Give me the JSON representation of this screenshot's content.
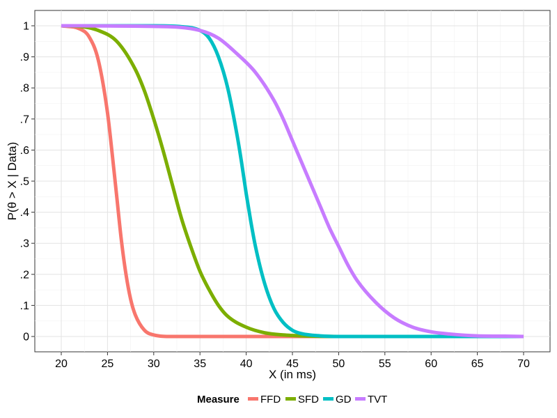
{
  "chart_data": {
    "type": "line",
    "xlabel": "X (in ms)",
    "ylabel": "P(θ > X | Data)",
    "xlim": [
      20,
      70
    ],
    "ylim": [
      0,
      1
    ],
    "x_ticks": [
      20,
      25,
      30,
      35,
      40,
      45,
      50,
      55,
      60,
      65,
      70
    ],
    "x_tick_labels": [
      "20",
      "25",
      "30",
      "35",
      "40",
      "45",
      "50",
      "55",
      "60",
      "65",
      "70"
    ],
    "y_ticks": [
      0,
      0.1,
      0.2,
      0.3,
      0.4,
      0.5,
      0.6,
      0.7,
      0.8,
      0.9,
      1
    ],
    "y_tick_labels": [
      "0",
      ".1",
      ".2",
      ".3",
      ".4",
      ".5",
      ".6",
      ".7",
      ".8",
      ".9",
      "1"
    ],
    "grid": true,
    "legend": {
      "title": "Measure",
      "position": "bottom"
    },
    "series": [
      {
        "name": "FFD",
        "color": "#F8766D",
        "x": [
          20,
          22,
          23,
          24,
          25,
          25.5,
          26,
          26.5,
          27,
          27.5,
          28,
          29,
          30,
          32,
          35,
          40,
          50,
          60,
          70
        ],
        "y": [
          1.0,
          0.99,
          0.965,
          0.89,
          0.72,
          0.59,
          0.45,
          0.31,
          0.2,
          0.12,
          0.07,
          0.02,
          0.005,
          0.0,
          0.0,
          0.0,
          0.0,
          0.0,
          0.0
        ]
      },
      {
        "name": "SFD",
        "color": "#7CAE00",
        "x": [
          20,
          22,
          24,
          26,
          28,
          29,
          30,
          31,
          32,
          33,
          34,
          35,
          36,
          37,
          38,
          40,
          42,
          44,
          46,
          50,
          60,
          70
        ],
        "y": [
          1.0,
          0.998,
          0.985,
          0.95,
          0.86,
          0.79,
          0.7,
          0.6,
          0.49,
          0.38,
          0.29,
          0.21,
          0.15,
          0.1,
          0.065,
          0.03,
          0.012,
          0.005,
          0.002,
          0.0,
          0.0,
          0.0
        ]
      },
      {
        "name": "GD",
        "color": "#00BFC4",
        "x": [
          20,
          30,
          33,
          35,
          36,
          37,
          38,
          39,
          39.5,
          40,
          40.5,
          41,
          42,
          43,
          44,
          45,
          46,
          48,
          50,
          60,
          70
        ],
        "y": [
          1.0,
          1.0,
          0.997,
          0.985,
          0.96,
          0.9,
          0.8,
          0.65,
          0.56,
          0.46,
          0.37,
          0.29,
          0.17,
          0.09,
          0.045,
          0.02,
          0.009,
          0.002,
          0.0,
          0.0,
          0.0
        ]
      },
      {
        "name": "TVT",
        "color": "#C77CFF",
        "x": [
          20,
          30,
          35,
          37,
          39,
          41,
          43,
          44,
          45,
          46,
          47,
          48,
          49,
          50,
          51,
          52,
          54,
          56,
          58,
          60,
          62,
          65,
          68,
          70
        ],
        "y": [
          1.0,
          0.998,
          0.985,
          0.96,
          0.91,
          0.85,
          0.76,
          0.7,
          0.63,
          0.56,
          0.49,
          0.42,
          0.35,
          0.29,
          0.23,
          0.18,
          0.11,
          0.06,
          0.03,
          0.015,
          0.008,
          0.002,
          0.001,
          0.0
        ]
      }
    ]
  }
}
